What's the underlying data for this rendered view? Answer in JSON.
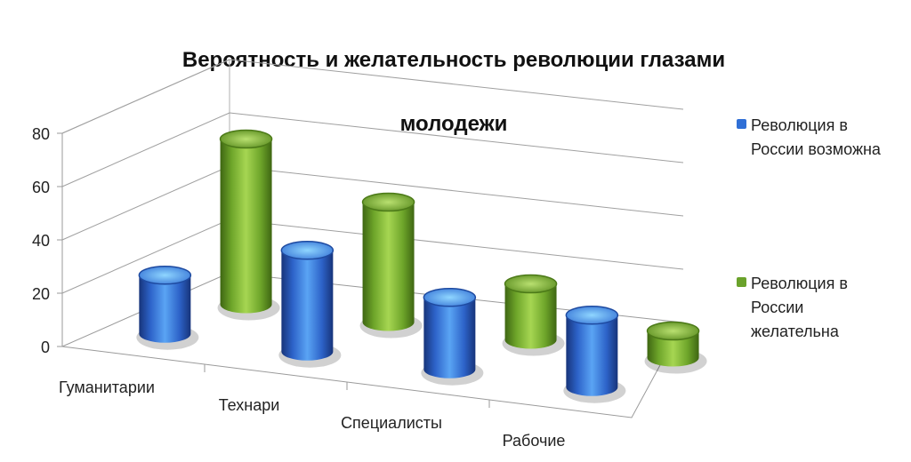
{
  "chart_data": {
    "type": "bar",
    "title": "Вероятность и желательность революции глазами молодежи",
    "categories": [
      "Гуманитарии",
      "Технари",
      "Специалисты",
      "Рабочие"
    ],
    "series": [
      {
        "name": "Революция в России возможна",
        "values": [
          22,
          38,
          27,
          27
        ],
        "color": "#2f6fd6"
      },
      {
        "name": "Революция в России желательна",
        "values": [
          62,
          45,
          21,
          10
        ],
        "color": "#6aa22b"
      }
    ],
    "ylim": [
      0,
      80
    ],
    "yticks": [
      "0",
      "20",
      "40",
      "60",
      "80"
    ],
    "grid": true,
    "legend": "right",
    "shape": "3d-cylinder"
  },
  "title_lines": [
    "Вероятность и желательность революции глазами",
    "молодежи"
  ],
  "legend": [
    {
      "line1": "Революция в",
      "line2": "России возможна",
      "line3": ""
    },
    {
      "line1": "Революция в",
      "line2": "России",
      "line3": "желательна"
    }
  ]
}
